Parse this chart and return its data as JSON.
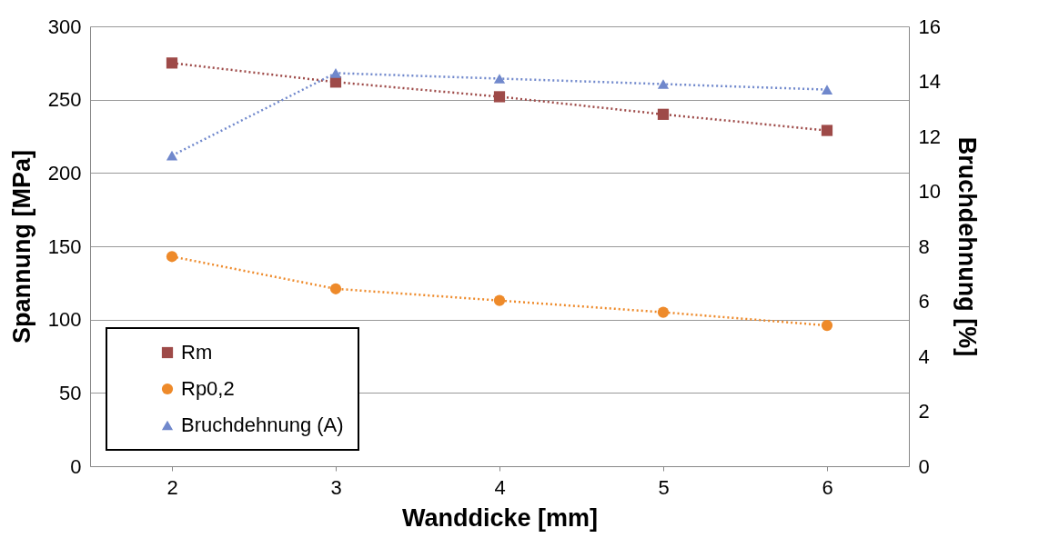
{
  "chart_data": {
    "type": "line",
    "xlabel": "Wanddicke   [mm]",
    "ylabel": "Spannung   [MPa]",
    "y2label": "Bruchdehnung   [%]",
    "categories": [
      "2",
      "3",
      "4",
      "5",
      "6"
    ],
    "series": [
      {
        "name": "Rm",
        "color": "#9e4a48",
        "marker": "square",
        "values": [
          275,
          262,
          252,
          240,
          229
        ]
      },
      {
        "name": "Rp0,2",
        "color": "#ee8a2a",
        "marker": "circle",
        "values": [
          143,
          121,
          113,
          105,
          96
        ]
      },
      {
        "name": "Bruchdehnung (A)",
        "color": "#7088cc",
        "marker": "triangle",
        "axis": "y2",
        "values": [
          11.3,
          14.3,
          14.1,
          13.9,
          13.7
        ]
      }
    ],
    "ylim": [
      0,
      300
    ],
    "yticks": [
      0,
      50,
      100,
      150,
      200,
      250,
      300
    ],
    "y2lim": [
      0,
      16
    ],
    "y2ticks": [
      0,
      2,
      4,
      6,
      8,
      10,
      12,
      14,
      16
    ],
    "grid": "y",
    "legend": "bottom left",
    "line_style": "dotted"
  }
}
